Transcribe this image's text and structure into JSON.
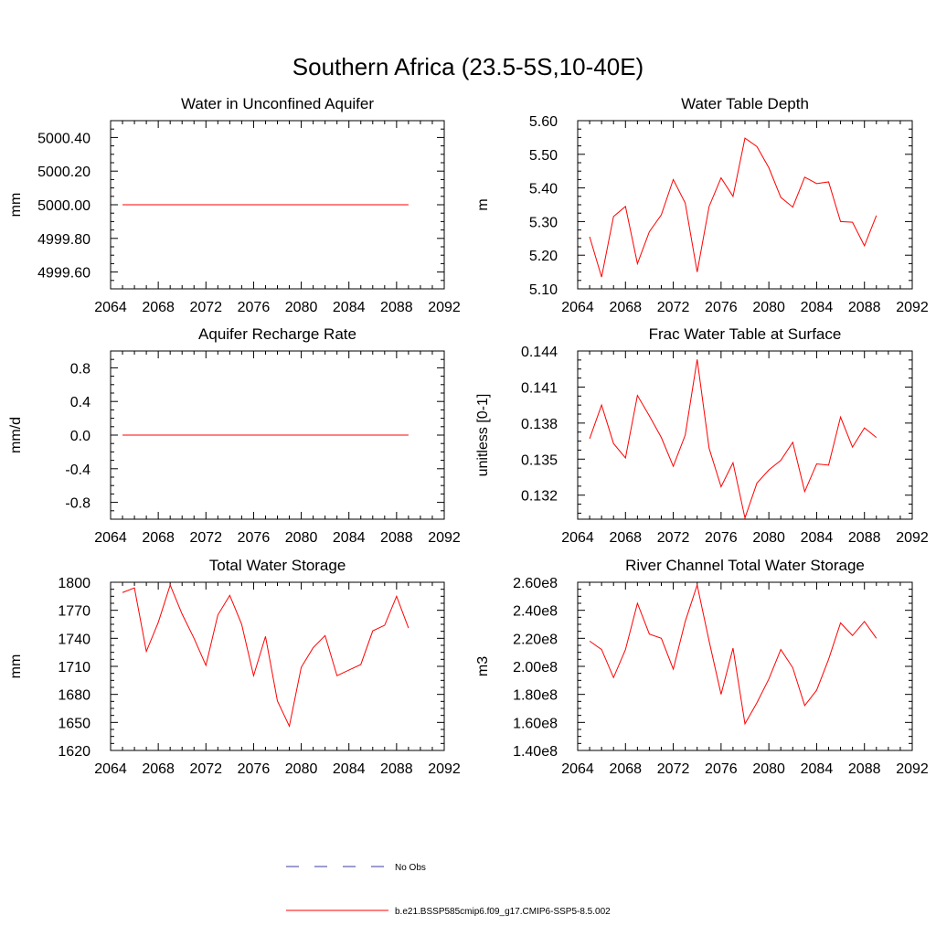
{
  "title": "Southern Africa (23.5-5S,10-40E)",
  "legend": {
    "placement": "bottom-center",
    "entries": [
      {
        "label": "No Obs",
        "color": "#3a3aa0",
        "style": "dashed"
      },
      {
        "label": "b.e21.BSSP585cmip6.f09_g17.CMIP6-SSP5-8.5.002",
        "color": "#ff0000",
        "style": "solid"
      }
    ]
  },
  "chart_data": [
    {
      "type": "line",
      "title": "Water in Unconfined Aquifer",
      "ylabel": "mm",
      "xlim": [
        2064,
        2092
      ],
      "ylim": [
        4999.5,
        5000.5
      ],
      "xticks": [
        2064,
        2068,
        2072,
        2076,
        2080,
        2084,
        2088,
        2092
      ],
      "yticks": [
        4999.6,
        4999.8,
        5000.0,
        5000.2,
        5000.4
      ],
      "ytick_labels": [
        "4999.60",
        "4999.80",
        "5000.00",
        "5000.20",
        "5000.40"
      ],
      "x": [
        2065,
        2066,
        2067,
        2068,
        2069,
        2070,
        2071,
        2072,
        2073,
        2074,
        2075,
        2076,
        2077,
        2078,
        2079,
        2080,
        2081,
        2082,
        2083,
        2084,
        2085,
        2086,
        2087,
        2088,
        2089
      ],
      "series": [
        {
          "color": "#ff0000",
          "values": [
            5000,
            5000,
            5000,
            5000,
            5000,
            5000,
            5000,
            5000,
            5000,
            5000,
            5000,
            5000,
            5000,
            5000,
            5000,
            5000,
            5000,
            5000,
            5000,
            5000,
            5000,
            5000,
            5000,
            5000,
            5000
          ]
        }
      ]
    },
    {
      "type": "line",
      "title": "Water Table Depth",
      "ylabel": "m",
      "xlim": [
        2064,
        2092
      ],
      "ylim": [
        5.1,
        5.6
      ],
      "xticks": [
        2064,
        2068,
        2072,
        2076,
        2080,
        2084,
        2088,
        2092
      ],
      "yticks": [
        5.1,
        5.2,
        5.3,
        5.4,
        5.5,
        5.6
      ],
      "ytick_labels": [
        "5.10",
        "5.20",
        "5.30",
        "5.40",
        "5.50",
        "5.60"
      ],
      "x": [
        2065,
        2066,
        2067,
        2068,
        2069,
        2070,
        2071,
        2072,
        2073,
        2074,
        2075,
        2076,
        2077,
        2078,
        2079,
        2080,
        2081,
        2082,
        2083,
        2084,
        2085,
        2086,
        2087,
        2088,
        2089
      ],
      "series": [
        {
          "color": "#ff0000",
          "values": [
            5.255,
            5.135,
            5.315,
            5.345,
            5.175,
            5.27,
            5.32,
            5.425,
            5.355,
            5.15,
            5.345,
            5.43,
            5.375,
            5.548,
            5.523,
            5.46,
            5.372,
            5.343,
            5.432,
            5.413,
            5.418,
            5.3,
            5.298,
            5.228,
            5.318
          ]
        }
      ]
    },
    {
      "type": "line",
      "title": "Aquifer Recharge Rate",
      "ylabel": "mm/d",
      "xlim": [
        2064,
        2092
      ],
      "ylim": [
        -1.0,
        1.0
      ],
      "xticks": [
        2064,
        2068,
        2072,
        2076,
        2080,
        2084,
        2088,
        2092
      ],
      "yticks": [
        -0.8,
        -0.4,
        0.0,
        0.4,
        0.8
      ],
      "ytick_labels": [
        "-0.8",
        "-0.4",
        "0.0",
        "0.4",
        "0.8"
      ],
      "x": [
        2065,
        2066,
        2067,
        2068,
        2069,
        2070,
        2071,
        2072,
        2073,
        2074,
        2075,
        2076,
        2077,
        2078,
        2079,
        2080,
        2081,
        2082,
        2083,
        2084,
        2085,
        2086,
        2087,
        2088,
        2089
      ],
      "series": [
        {
          "color": "#ff0000",
          "values": [
            0,
            0,
            0,
            0,
            0,
            0,
            0,
            0,
            0,
            0,
            0,
            0,
            0,
            0,
            0,
            0,
            0,
            0,
            0,
            0,
            0,
            0,
            0,
            0,
            0
          ]
        }
      ]
    },
    {
      "type": "line",
      "title": "Frac Water Table at Surface",
      "ylabel": "unitless [0-1]",
      "xlim": [
        2064,
        2092
      ],
      "ylim": [
        0.13,
        0.144
      ],
      "xticks": [
        2064,
        2068,
        2072,
        2076,
        2080,
        2084,
        2088,
        2092
      ],
      "yticks": [
        0.132,
        0.135,
        0.138,
        0.141,
        0.144
      ],
      "ytick_labels": [
        "0.132",
        "0.135",
        "0.138",
        "0.141",
        "0.144"
      ],
      "x": [
        2065,
        2066,
        2067,
        2068,
        2069,
        2070,
        2071,
        2072,
        2073,
        2074,
        2075,
        2076,
        2077,
        2078,
        2079,
        2080,
        2081,
        2082,
        2083,
        2084,
        2085,
        2086,
        2087,
        2088,
        2089
      ],
      "series": [
        {
          "color": "#ff0000",
          "values": [
            0.1367,
            0.1395,
            0.1363,
            0.1351,
            0.1403,
            0.1386,
            0.1368,
            0.1344,
            0.137,
            0.1433,
            0.1359,
            0.1327,
            0.1347,
            0.1301,
            0.133,
            0.1341,
            0.1349,
            0.1364,
            0.1323,
            0.1346,
            0.1345,
            0.1385,
            0.136,
            0.1376,
            0.1368
          ]
        }
      ]
    },
    {
      "type": "line",
      "title": "Total Water Storage",
      "ylabel": "mm",
      "xlim": [
        2064,
        2092
      ],
      "ylim": [
        1620,
        1800
      ],
      "xticks": [
        2064,
        2068,
        2072,
        2076,
        2080,
        2084,
        2088,
        2092
      ],
      "yticks": [
        1620,
        1650,
        1680,
        1710,
        1740,
        1770,
        1800
      ],
      "ytick_labels": [
        "1620",
        "1650",
        "1680",
        "1710",
        "1740",
        "1770",
        "1800"
      ],
      "x": [
        2065,
        2066,
        2067,
        2068,
        2069,
        2070,
        2071,
        2072,
        2073,
        2074,
        2075,
        2076,
        2077,
        2078,
        2079,
        2080,
        2081,
        2082,
        2083,
        2084,
        2085,
        2086,
        2087,
        2088,
        2089
      ],
      "series": [
        {
          "color": "#ff0000",
          "values": [
            1789,
            1794,
            1726,
            1757,
            1797,
            1766,
            1740,
            1711,
            1765,
            1786,
            1755,
            1700,
            1742,
            1673,
            1646,
            1709,
            1730,
            1743,
            1700,
            1706,
            1712,
            1748,
            1754,
            1785,
            1751
          ]
        }
      ]
    },
    {
      "type": "line",
      "title": "River Channel Total Water Storage",
      "ylabel": "m3",
      "xlim": [
        2064,
        2092
      ],
      "ylim": [
        140000000.0,
        260000000.0
      ],
      "xticks": [
        2064,
        2068,
        2072,
        2076,
        2080,
        2084,
        2088,
        2092
      ],
      "yticks": [
        140000000.0,
        160000000.0,
        180000000.0,
        200000000.0,
        220000000.0,
        240000000.0,
        260000000.0
      ],
      "ytick_labels": [
        "1.40e8",
        "1.60e8",
        "1.80e8",
        "2.00e8",
        "2.20e8",
        "2.40e8",
        "2.60e8"
      ],
      "x": [
        2065,
        2066,
        2067,
        2068,
        2069,
        2070,
        2071,
        2072,
        2073,
        2074,
        2075,
        2076,
        2077,
        2078,
        2079,
        2080,
        2081,
        2082,
        2083,
        2084,
        2085,
        2086,
        2087,
        2088,
        2089
      ],
      "series": [
        {
          "color": "#ff0000",
          "values": [
            218000000.0,
            212000000.0,
            192000000.0,
            212000000.0,
            245000000.0,
            223000000.0,
            220000000.0,
            198000000.0,
            232000000.0,
            258000000.0,
            218000000.0,
            180000000.0,
            213000000.0,
            159000000.0,
            174000000.0,
            191000000.0,
            212000000.0,
            199000000.0,
            172000000.0,
            183000000.0,
            205000000.0,
            231000000.0,
            222000000.0,
            232000000.0,
            220000000.0
          ]
        }
      ]
    }
  ]
}
